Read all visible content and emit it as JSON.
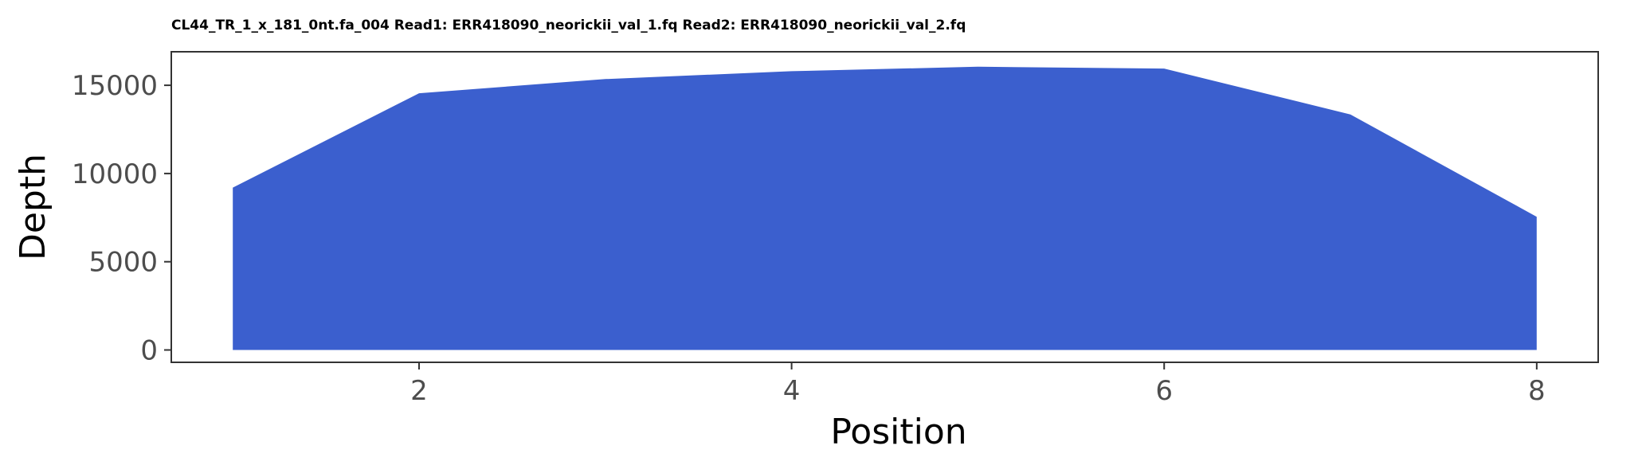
{
  "chart_data": {
    "type": "area",
    "title": "CL44_TR_1_x_181_0nt.fa_004 Read1: ERR418090_neorickii_val_1.fq Read2: ERR418090_neorickii_val_2.fq",
    "xlabel": "Position",
    "ylabel": "Depth",
    "x": [
      1,
      2,
      3,
      4,
      5,
      6,
      7,
      8
    ],
    "series": [
      {
        "values": [
          9200,
          14550,
          15350,
          15800,
          16050,
          15950,
          13350,
          7550
        ]
      }
    ],
    "xlim": [
      0.67,
      8.33
    ],
    "ylim": [
      -700,
      16900
    ],
    "xticks": [
      2,
      4,
      6,
      8
    ],
    "yticks": [
      0,
      5000,
      10000,
      15000
    ],
    "fill_color": "#3b5fce",
    "grid": false,
    "legend": "none"
  }
}
